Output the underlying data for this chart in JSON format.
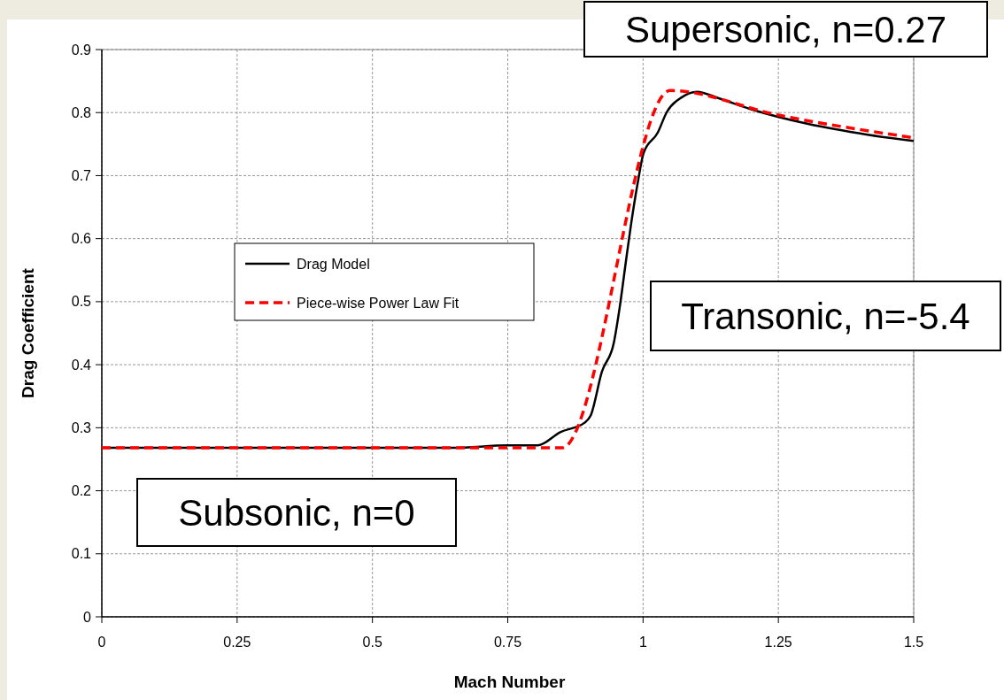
{
  "chart_data": {
    "type": "line",
    "xlabel": "Mach Number",
    "ylabel": "Drag Coefficient",
    "xlim": [
      0,
      1.5
    ],
    "ylim": [
      0,
      0.9
    ],
    "xticks": [
      0,
      0.25,
      0.5,
      0.75,
      1,
      1.25,
      1.5
    ],
    "yticks": [
      0,
      0.1,
      0.2,
      0.3,
      0.4,
      0.5,
      0.6,
      0.7,
      0.8,
      0.9
    ],
    "grid": true,
    "legend": "left",
    "marker": "none",
    "series": [
      {
        "name": "Drag Model",
        "color": "#000000",
        "line_style": "solid",
        "x": [
          0,
          0.25,
          0.5,
          0.65,
          0.75,
          0.805,
          0.847,
          0.892,
          0.903,
          0.924,
          0.946,
          0.957,
          0.968,
          0.978,
          0.99,
          1.001,
          1.027,
          1.044,
          1.071,
          1.099,
          1.142,
          1.197,
          1.305,
          1.415,
          1.5
        ],
        "values": [
          0.268,
          0.268,
          0.268,
          0.268,
          0.272,
          0.272,
          0.293,
          0.308,
          0.319,
          0.389,
          0.435,
          0.492,
          0.562,
          0.624,
          0.688,
          0.736,
          0.768,
          0.801,
          0.824,
          0.833,
          0.822,
          0.806,
          0.782,
          0.765,
          0.755
        ]
      },
      {
        "name": "Piece-wise Power Law Fit",
        "color": "#ff0000",
        "line_style": "dashed",
        "x": [
          0,
          0.85,
          1.05,
          1.25,
          1.5
        ],
        "values": [
          0.268,
          0.268,
          0.835,
          0.796,
          0.76
        ]
      }
    ],
    "annotations": [
      "Subsonic, n=0",
      "Supersonic, n=0.27",
      "Transonic, n=-5.4"
    ]
  }
}
